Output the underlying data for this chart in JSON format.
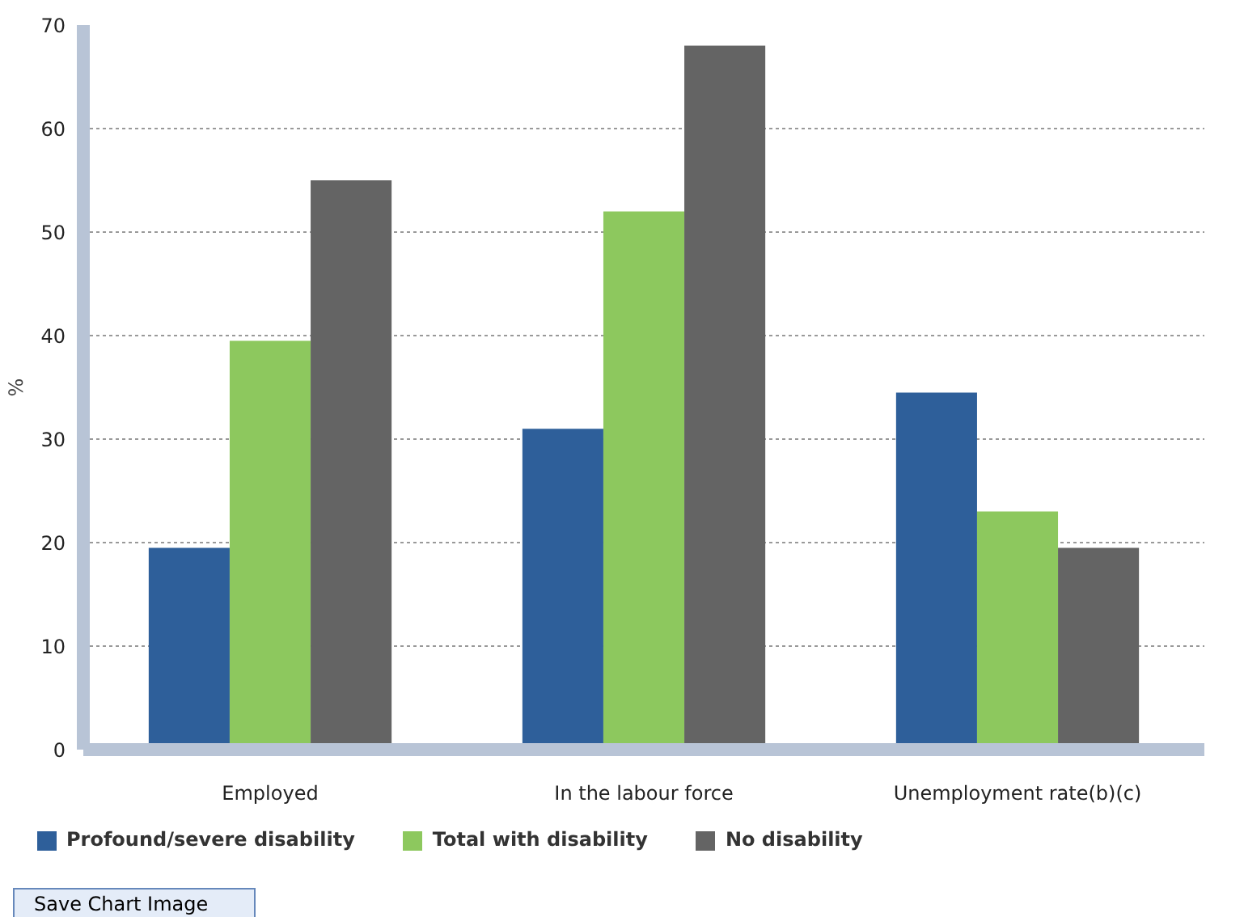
{
  "chart_data": {
    "type": "bar",
    "ylabel": "%",
    "categories": [
      "Employed",
      "In the labour force",
      "Unemployment rate(b)(c)"
    ],
    "series": [
      {
        "name": "Profound/severe disability",
        "color": "#2e5f9a",
        "values": [
          19.5,
          31,
          34.5
        ]
      },
      {
        "name": "Total with disability",
        "color": "#8dc85e",
        "values": [
          39.5,
          52,
          23
        ]
      },
      {
        "name": "No disability",
        "color": "#646464",
        "values": [
          55,
          68,
          19.5
        ]
      }
    ],
    "ylim": [
      0,
      70
    ],
    "yticks": [
      0,
      10,
      20,
      30,
      40,
      50,
      60,
      70
    ],
    "grid": "y",
    "legend": "bottom",
    "annotations": [
      "Save Chart Image"
    ]
  }
}
